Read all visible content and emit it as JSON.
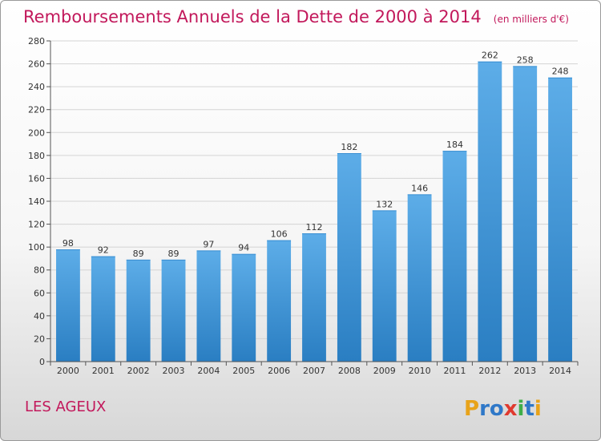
{
  "header": {
    "title": "Remboursements Annuels de la Dette de 2000 à 2014",
    "unit": "(en milliers d'€)"
  },
  "footer": {
    "place": "LES AGEUX",
    "brand": "Proxiti"
  },
  "colors": {
    "title": "#c2185b",
    "bar_light": "#5dade8",
    "bar_dark": "#2a7ec2",
    "grid": "#d4d4d4",
    "axis": "#555555"
  },
  "chart_data": {
    "type": "bar",
    "title": "Remboursements Annuels de la Dette de 2000 à 2014",
    "xlabel": "",
    "ylabel": "",
    "categories": [
      "2000",
      "2001",
      "2002",
      "2003",
      "2004",
      "2005",
      "2006",
      "2007",
      "2008",
      "2009",
      "2010",
      "2011",
      "2012",
      "2013",
      "2014"
    ],
    "values": [
      98,
      92,
      89,
      89,
      97,
      94,
      106,
      112,
      182,
      132,
      146,
      184,
      262,
      258,
      248
    ],
    "ylim": [
      0,
      280
    ],
    "yticks": [
      0,
      20,
      40,
      60,
      80,
      100,
      120,
      140,
      160,
      180,
      200,
      220,
      240,
      260,
      280
    ],
    "grid": true
  }
}
